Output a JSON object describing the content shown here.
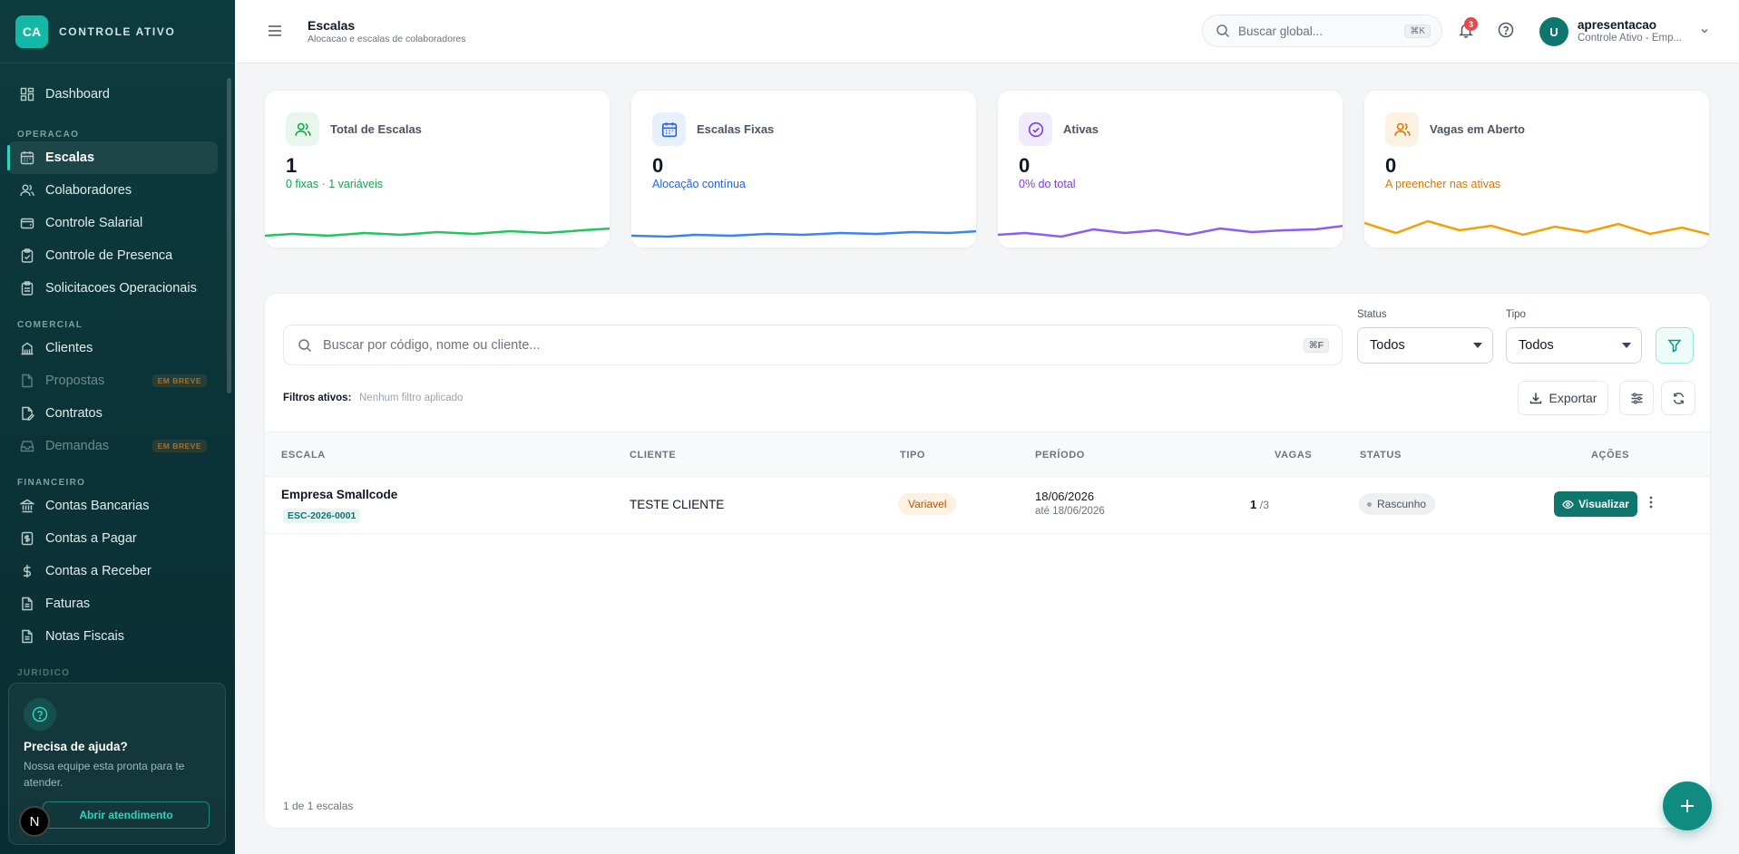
{
  "brand": {
    "initials": "CA",
    "name": "CONTROLE ATIVO"
  },
  "sidebar": {
    "dashboard": "Dashboard",
    "sections": {
      "operacao": "OPERACAO",
      "comercial": "COMERCIAL",
      "financeiro": "FINANCEIRO",
      "juridico": "JURIDICO"
    },
    "items": {
      "escalas": "Escalas",
      "colaboradores": "Colaboradores",
      "controle_salarial": "Controle Salarial",
      "controle_presenca": "Controle de Presenca",
      "solicitacoes": "Solicitacoes Operacionais",
      "clientes": "Clientes",
      "propostas": "Propostas",
      "contratos": "Contratos",
      "demandas": "Demandas",
      "contas_bancarias": "Contas Bancarias",
      "contas_pagar": "Contas a Pagar",
      "contas_receber": "Contas a Receber",
      "faturas": "Faturas",
      "notas_fiscais": "Notas Fiscais"
    },
    "soon_badge": "EM BREVE",
    "help": {
      "title": "Precisa de ajuda?",
      "text": "Nossa equipe esta pronta para te atender.",
      "button": "Abrir atendimento"
    },
    "avatar_letter": "N"
  },
  "header": {
    "title": "Escalas",
    "subtitle": "Alocacao e escalas de colaboradores",
    "search_placeholder": "Buscar global...",
    "search_kbd": "⌘K",
    "notifications": "3",
    "user": {
      "initial": "U",
      "name": "apresentacao",
      "org": "Controle Ativo - Emp..."
    }
  },
  "stats": [
    {
      "label": "Total de Escalas",
      "value": "1",
      "sub": "0 fixas · 1 variáveis",
      "color": "#16a34a"
    },
    {
      "label": "Escalas Fixas",
      "value": "0",
      "sub": "Alocação contínua",
      "color": "#2563eb"
    },
    {
      "label": "Ativas",
      "value": "0",
      "sub": "0% do total",
      "color": "#7c3aed"
    },
    {
      "label": "Vagas em Aberto",
      "value": "0",
      "sub": "A preencher nas ativas",
      "color": "#d97706"
    }
  ],
  "filters": {
    "search_placeholder": "Buscar por código, nome ou cliente...",
    "search_kbd": "⌘F",
    "status_label": "Status",
    "status_value": "Todos",
    "tipo_label": "Tipo",
    "tipo_value": "Todos",
    "active_label": "Filtros ativos:",
    "active_value": "Nenhum filtro aplicado",
    "export_label": "Exportar"
  },
  "table": {
    "columns": [
      "ESCALA",
      "CLIENTE",
      "TIPO",
      "PERÍODO",
      "VAGAS",
      "STATUS",
      "AÇÕES"
    ],
    "rows": [
      {
        "escala": "Empresa Smallcode",
        "codigo": "ESC-2026-0001",
        "cliente": "TESTE CLIENTE",
        "tipo": "Variavel",
        "periodo_inicio": "18/06/2026",
        "periodo_fim": "até 18/06/2026",
        "vagas_preenchidas": "1",
        "vagas_total": "/3",
        "status": "Rascunho",
        "acao": "Visualizar"
      }
    ],
    "footer": "1 de 1 escalas"
  }
}
